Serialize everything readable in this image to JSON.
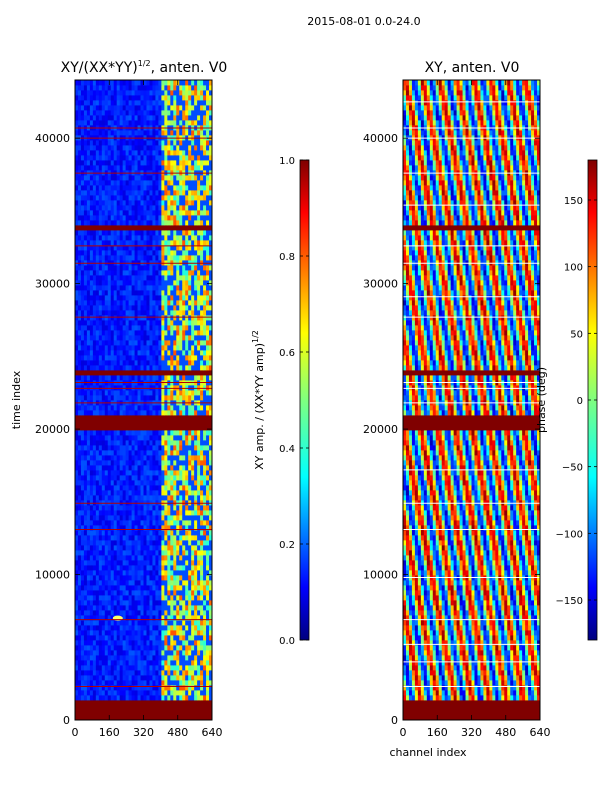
{
  "suptitle": "2015-08-01 0.0-24.0",
  "colors": {
    "jet": [
      "#00007f",
      "#0000ff",
      "#007fff",
      "#00ffff",
      "#7fff7f",
      "#ffff00",
      "#ff7f00",
      "#ff0000",
      "#7f0000"
    ],
    "axis": "#000000",
    "flag_line_left": "#b40000",
    "flag_line_right": "#ffffff"
  },
  "chart_data": [
    {
      "type": "heatmap",
      "title": "XY/(XX*YY)",
      "title_exponent": "1/2",
      "title_suffix": ", anten. V0",
      "xlabel": "",
      "ylabel": "time index",
      "xlim": [
        0,
        640
      ],
      "ylim": [
        0,
        44000
      ],
      "xticks": [
        0,
        160,
        320,
        480,
        640
      ],
      "xtick_labels": [
        "0",
        "160",
        "320",
        "480",
        "640"
      ],
      "yticks": [
        0,
        10000,
        20000,
        30000,
        40000
      ],
      "ytick_labels": [
        "0",
        "10000",
        "20000",
        "30000",
        "40000"
      ],
      "colorbar": {
        "label": "XY amp. / (XX*YY amp)",
        "label_exponent": "1/2",
        "range": [
          0.0,
          1.0
        ],
        "ticks": [
          0.0,
          0.2,
          0.4,
          0.6,
          0.8,
          1.0
        ],
        "tick_labels": [
          "0.0",
          "0.2",
          "0.4",
          "0.6",
          "0.8",
          "1.0"
        ]
      },
      "flagged_time_bands": [
        [
          0,
          1400
        ],
        [
          19800,
          20900
        ],
        [
          23800,
          24200
        ],
        [
          33700,
          33900
        ]
      ],
      "flag_lines": [
        2300,
        6900,
        13100,
        14900,
        21800,
        22800,
        23200,
        27700,
        31400,
        32600,
        37600,
        40000,
        40700
      ],
      "features": {
        "background_value": 0.15,
        "active_channel_range": [
          400,
          640
        ],
        "active_value_range": [
          0.4,
          0.8
        ],
        "spike": {
          "time": 7000,
          "channel": 200
        }
      }
    },
    {
      "type": "heatmap",
      "title": "XY, anten. V0",
      "xlabel": "channel index",
      "ylabel": "",
      "xlim": [
        0,
        640
      ],
      "ylim": [
        0,
        44000
      ],
      "xticks": [
        0,
        160,
        320,
        480,
        640
      ],
      "xtick_labels": [
        "0",
        "160",
        "320",
        "480",
        "640"
      ],
      "yticks": [
        0,
        10000,
        20000,
        30000,
        40000
      ],
      "ytick_labels": [
        "0",
        "10000",
        "20000",
        "30000",
        "40000"
      ],
      "colorbar": {
        "label": "phase (deg)",
        "range": [
          -180,
          180
        ],
        "ticks": [
          -150,
          -100,
          -50,
          0,
          50,
          100,
          150
        ],
        "tick_labels": [
          "−150",
          "−100",
          "−50",
          "0",
          "50",
          "100",
          "150"
        ]
      },
      "flagged_time_bands": [
        [
          0,
          1400
        ],
        [
          19800,
          20900
        ],
        [
          23800,
          24200
        ],
        [
          33700,
          33900
        ]
      ],
      "flag_lines": [
        2300,
        4000,
        5200,
        6900,
        9800,
        13100,
        14900,
        17200,
        21800,
        22800,
        23200,
        27700,
        29100,
        31400,
        32600,
        35400,
        37600,
        40000,
        40700,
        42500
      ],
      "features": {
        "stripe_period_channels": 80,
        "phase_range": [
          -180,
          180
        ]
      }
    }
  ]
}
